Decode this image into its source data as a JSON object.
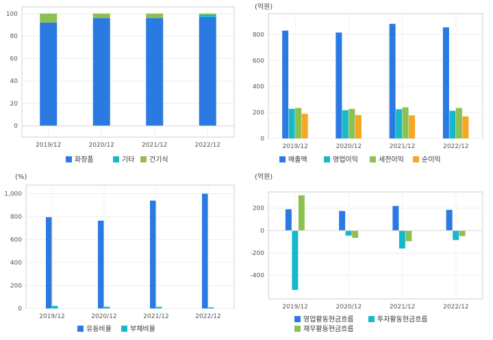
{
  "colors": {
    "blue": "#2a7ae2",
    "teal": "#17b9c8",
    "green": "#8cc152",
    "orange": "#f5a623"
  },
  "chart_data": [
    {
      "id": "c1",
      "type": "bar",
      "stacked": true,
      "unit": "",
      "categories": [
        "2019/12",
        "2020/12",
        "2021/12",
        "2022/12"
      ],
      "series": [
        {
          "name": "화장품",
          "color": "#2a7ae2",
          "values": [
            92,
            96,
            96,
            97
          ]
        },
        {
          "name": "기타",
          "color": "#17b9c8",
          "values": [
            0,
            0,
            0,
            2
          ]
        },
        {
          "name": "건기식",
          "color": "#8cc152",
          "values": [
            8,
            4,
            4,
            1
          ]
        }
      ],
      "ylim": [
        -10,
        106
      ],
      "yticks": [
        0,
        20,
        40,
        60,
        80,
        100
      ],
      "ytick_labels": [
        "0",
        "20",
        "40",
        "60",
        "80",
        "100"
      ],
      "legend": "bottom",
      "grid": true
    },
    {
      "id": "c2",
      "type": "bar",
      "unit": "(억원)",
      "categories": [
        "2019/12",
        "2020/12",
        "2021/12",
        "2022/12"
      ],
      "series": [
        {
          "name": "매출액",
          "color": "#2a7ae2",
          "values": [
            830,
            815,
            882,
            855
          ]
        },
        {
          "name": "영업이익",
          "color": "#17b9c8",
          "values": [
            228,
            218,
            225,
            213
          ]
        },
        {
          "name": "세전이익",
          "color": "#8cc152",
          "values": [
            235,
            228,
            240,
            235
          ]
        },
        {
          "name": "순이익",
          "color": "#f5a623",
          "values": [
            190,
            180,
            178,
            170
          ]
        }
      ],
      "ylim": [
        0,
        960
      ],
      "yticks": [
        0,
        200,
        400,
        600,
        800
      ],
      "ytick_labels": [
        "0",
        "200",
        "400",
        "600",
        "800"
      ],
      "legend": "bottom",
      "grid": true
    },
    {
      "id": "c3",
      "type": "bar",
      "unit": "(%)",
      "categories": [
        "2019/12",
        "2020/12",
        "2021/12",
        "2022/12"
      ],
      "series": [
        {
          "name": "유동비율",
          "color": "#2a7ae2",
          "values": [
            795,
            765,
            940,
            1000
          ]
        },
        {
          "name": "부채비율",
          "color": "#17b9c8",
          "values": [
            22,
            15,
            14,
            10
          ]
        }
      ],
      "ylim": [
        0,
        1075
      ],
      "yticks": [
        0,
        200,
        400,
        600,
        800,
        1000
      ],
      "ytick_labels": [
        "0",
        "200",
        "400",
        "600",
        "800",
        "1,000"
      ],
      "legend": "bottom",
      "grid": true
    },
    {
      "id": "c4",
      "type": "bar",
      "unit": "(억원)",
      "categories": [
        "2019/12",
        "2020/12",
        "2021/12",
        "2022/12"
      ],
      "series": [
        {
          "name": "영업활동현금흐름",
          "color": "#2a7ae2",
          "values": [
            190,
            175,
            220,
            185
          ]
        },
        {
          "name": "투자활동현금흐름",
          "color": "#17b9c8",
          "values": [
            -530,
            -45,
            -160,
            -85
          ]
        },
        {
          "name": "재무활동현금흐름",
          "color": "#8cc152",
          "values": [
            315,
            -65,
            -95,
            -50
          ]
        }
      ],
      "ylim": [
        -610,
        345
      ],
      "yticks": [
        -400,
        -200,
        0,
        200
      ],
      "ytick_labels": [
        "-400",
        "-200",
        "0",
        "200"
      ],
      "legend": "bottom",
      "grid": true
    }
  ]
}
